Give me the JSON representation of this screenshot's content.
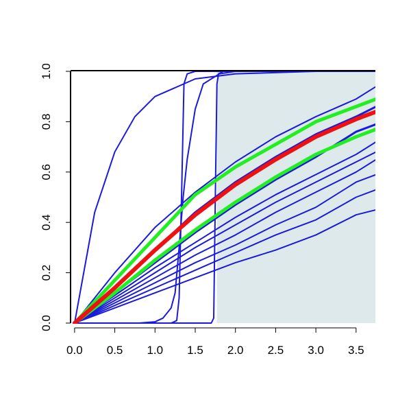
{
  "chart_data": {
    "type": "line",
    "xlim": [
      -0.05,
      3.74
    ],
    "ylim": [
      0,
      1
    ],
    "xticks": [
      {
        "value": 0,
        "label": "0.0"
      },
      {
        "value": 0.5,
        "label": "0.5"
      },
      {
        "value": 1,
        "label": "1.0"
      },
      {
        "value": 1.5,
        "label": "1.5"
      },
      {
        "value": 2,
        "label": "2.0"
      },
      {
        "value": 2.5,
        "label": "2.5"
      },
      {
        "value": 3,
        "label": "3.0"
      },
      {
        "value": 3.5,
        "label": "3.5"
      }
    ],
    "yticks": [
      {
        "value": 0,
        "label": "0.0"
      },
      {
        "value": 0.2,
        "label": "0.2"
      },
      {
        "value": 0.4,
        "label": "0.4"
      },
      {
        "value": 0.6,
        "label": "0.6"
      },
      {
        "value": 0.8,
        "label": "0.8"
      },
      {
        "value": 1,
        "label": "1.0"
      }
    ],
    "shade": {
      "x": [
        1.77,
        3.74
      ],
      "y": [
        0,
        1
      ],
      "color": "#dde9ea"
    },
    "series": [
      {
        "color": "#1a1adb",
        "width": 2,
        "x": [
          0,
          0.25,
          0.5,
          0.75,
          1,
          1.5,
          2,
          3,
          3.75
        ],
        "values": [
          0,
          0.44,
          0.68,
          0.82,
          0.9,
          0.97,
          0.99,
          1,
          1
        ]
      },
      {
        "color": "#1a1adb",
        "width": 2,
        "x": [
          0,
          0.5,
          1,
          1.5,
          2,
          2.5,
          3,
          3.5,
          3.75
        ],
        "values": [
          0,
          0.2,
          0.38,
          0.52,
          0.64,
          0.74,
          0.82,
          0.89,
          0.94
        ]
      },
      {
        "color": "#1a1adb",
        "width": 3,
        "x": [
          0,
          0.5,
          1,
          1.5,
          2,
          2.5,
          3,
          3.5,
          3.75
        ],
        "values": [
          0,
          0.14,
          0.29,
          0.44,
          0.56,
          0.66,
          0.75,
          0.82,
          0.86
        ]
      },
      {
        "color": "#1a1adb",
        "width": 3,
        "x": [
          0,
          0.5,
          1,
          1.5,
          2,
          2.5,
          3,
          3.5,
          3.75
        ],
        "values": [
          0,
          0.12,
          0.24,
          0.36,
          0.47,
          0.57,
          0.66,
          0.76,
          0.79
        ]
      },
      {
        "color": "#1a1adb",
        "width": 2,
        "x": [
          0,
          0.5,
          1,
          1.5,
          2,
          2.5,
          3,
          3.5,
          3.75
        ],
        "values": [
          0,
          0.11,
          0.22,
          0.32,
          0.42,
          0.51,
          0.59,
          0.67,
          0.72
        ]
      },
      {
        "color": "#1a1adb",
        "width": 2,
        "x": [
          0,
          0.5,
          1,
          1.5,
          2,
          2.5,
          3,
          3.5,
          3.75
        ],
        "values": [
          0,
          0.1,
          0.2,
          0.3,
          0.39,
          0.48,
          0.56,
          0.64,
          0.68
        ]
      },
      {
        "color": "#1a1adb",
        "width": 2,
        "x": [
          0,
          0.5,
          1,
          1.5,
          2,
          2.5,
          3,
          3.5,
          3.75
        ],
        "values": [
          0,
          0.09,
          0.18,
          0.27,
          0.35,
          0.44,
          0.52,
          0.6,
          0.65
        ]
      },
      {
        "color": "#1a1adb",
        "width": 2,
        "x": [
          0,
          0.5,
          1,
          1.5,
          2,
          2.5,
          3,
          3.5,
          3.75
        ],
        "values": [
          0,
          0.08,
          0.16,
          0.24,
          0.31,
          0.39,
          0.46,
          0.56,
          0.59
        ]
      },
      {
        "color": "#1a1adb",
        "width": 2,
        "x": [
          0,
          0.5,
          1,
          1.5,
          2,
          2.5,
          3,
          3.5,
          3.75
        ],
        "values": [
          0,
          0.07,
          0.14,
          0.21,
          0.28,
          0.35,
          0.41,
          0.5,
          0.53
        ]
      },
      {
        "color": "#1a1adb",
        "width": 2,
        "x": [
          0,
          0.5,
          1,
          1.5,
          2,
          2.5,
          3,
          3.5,
          3.75
        ],
        "values": [
          0,
          0.06,
          0.12,
          0.18,
          0.24,
          0.29,
          0.35,
          0.43,
          0.45
        ]
      },
      {
        "color": "#1a1adb",
        "width": 2,
        "x": [
          0,
          1.2,
          1.27,
          1.3,
          1.33,
          1.36,
          1.4,
          1.5,
          3.75
        ],
        "values": [
          0,
          0,
          0.01,
          0.1,
          0.5,
          0.95,
          0.99,
          1,
          1
        ]
      },
      {
        "color": "#1a1adb",
        "width": 2,
        "x": [
          0,
          1.7,
          1.73,
          1.75,
          1.77,
          1.79,
          1.85,
          3.75
        ],
        "values": [
          0,
          0,
          0.02,
          0.5,
          0.95,
          0.99,
          1,
          1
        ]
      },
      {
        "color": "#1a1adb",
        "width": 2,
        "x": [
          0,
          0.8,
          1,
          1.1,
          1.2,
          1.25,
          1.3,
          1.35,
          1.4,
          1.5,
          1.6,
          1.8,
          2,
          3.75
        ],
        "values": [
          0,
          0,
          0.005,
          0.02,
          0.06,
          0.12,
          0.3,
          0.5,
          0.65,
          0.85,
          0.95,
          0.99,
          1,
          1
        ]
      },
      {
        "color": "#22ee22",
        "width": 5,
        "x": [
          0,
          0.5,
          1,
          1.5,
          2,
          2.5,
          3,
          3.5,
          3.75
        ],
        "values": [
          0,
          0.17,
          0.34,
          0.51,
          0.62,
          0.71,
          0.8,
          0.86,
          0.89
        ]
      },
      {
        "color": "#22ee22",
        "width": 5,
        "x": [
          0,
          0.5,
          1,
          1.5,
          2,
          2.5,
          3,
          3.5,
          3.75
        ],
        "values": [
          0,
          0.12,
          0.25,
          0.37,
          0.48,
          0.58,
          0.67,
          0.74,
          0.77
        ]
      },
      {
        "color": "#ee1111",
        "width": 6,
        "x": [
          0,
          0.5,
          1,
          1.5,
          2,
          2.5,
          3,
          3.5,
          3.75
        ],
        "values": [
          0,
          0.14,
          0.29,
          0.43,
          0.55,
          0.65,
          0.74,
          0.81,
          0.84
        ]
      }
    ]
  }
}
